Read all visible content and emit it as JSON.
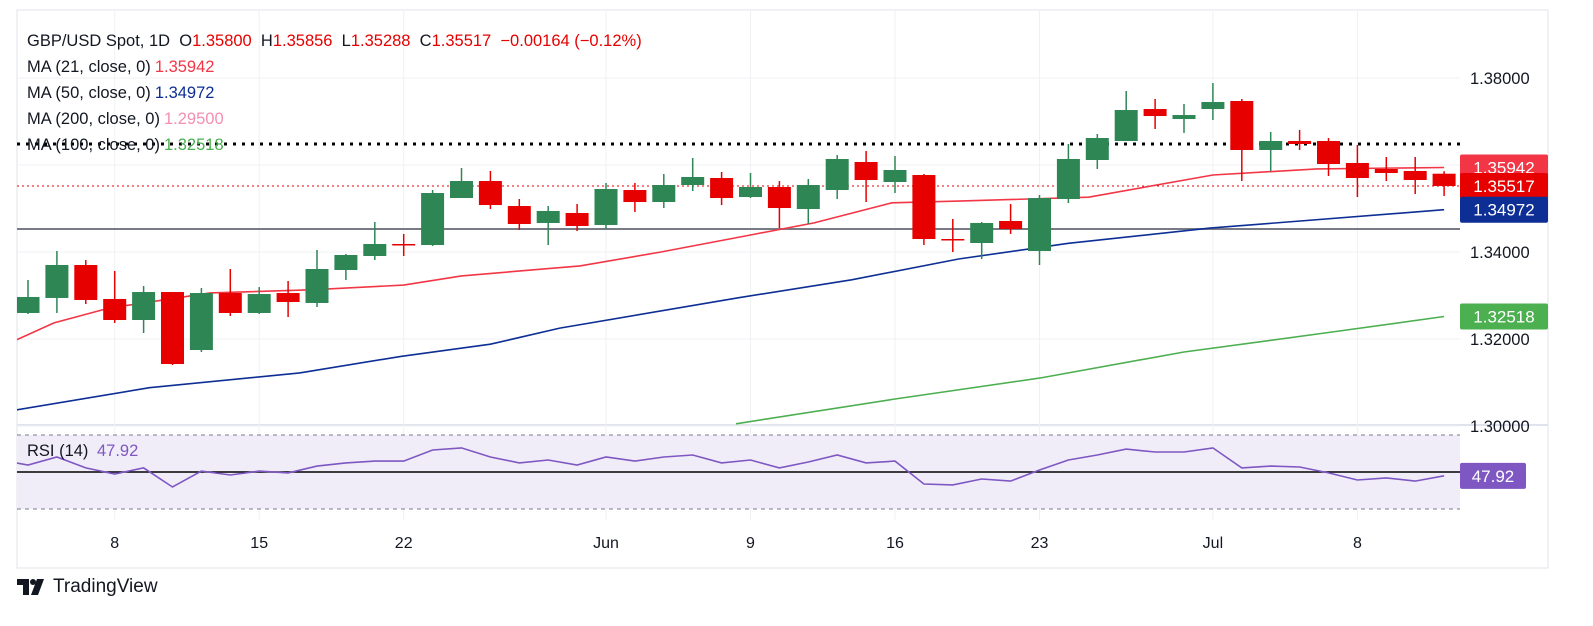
{
  "chart_data": {
    "type": "candlestick",
    "title": "GBP/USD Spot, 1D",
    "ohlc_header": {
      "open": "1.35800",
      "high": "1.35856",
      "low": "1.35288",
      "close": "1.35517",
      "change": "−0.00164 (−0.12%)",
      "o": "O",
      "h": "H",
      "l": "L",
      "c": "C"
    },
    "indicators": [
      {
        "name": "MA (21, close, 0)",
        "value": "1.35942",
        "color": "#f23645"
      },
      {
        "name": "MA (50, close, 0)",
        "value": "1.34972",
        "color": "#0d2e94"
      },
      {
        "name": "MA (200, close, 0)",
        "value": "1.29500",
        "color": "#f48fb1"
      },
      {
        "name": "MA (100, close, 0)",
        "value": "1.32518",
        "color": "#4caf50"
      }
    ],
    "candles_ohlc": [
      [
        1.32598,
        1.33356,
        1.32575,
        1.32966
      ],
      [
        1.32943,
        1.34023,
        1.32598,
        1.33701
      ],
      [
        1.33701,
        1.33816,
        1.32805,
        1.32897
      ],
      [
        1.3292,
        1.33563,
        1.32368,
        1.32437
      ],
      [
        1.32437,
        1.33218,
        1.32138,
        1.3308
      ],
      [
        1.3308,
        1.3308,
        1.31402,
        1.31425
      ],
      [
        1.31747,
        1.33172,
        1.31701,
        1.33057
      ],
      [
        1.33057,
        1.33609,
        1.32529,
        1.32598
      ],
      [
        1.32598,
        1.33195,
        1.32575,
        1.33034
      ],
      [
        1.33057,
        1.33333,
        1.32506,
        1.32851
      ],
      [
        1.32828,
        1.34046,
        1.32736,
        1.33609
      ],
      [
        1.33586,
        1.33954,
        1.33356,
        1.33931
      ],
      [
        1.33908,
        1.3469,
        1.33816,
        1.34184
      ],
      [
        1.34184,
        1.34414,
        1.33908,
        1.34161
      ],
      [
        1.34161,
        1.35425,
        1.34138,
        1.35356
      ],
      [
        1.35241,
        1.35931,
        1.35241,
        1.35632
      ],
      [
        1.35632,
        1.35862,
        1.34988,
        1.3508
      ],
      [
        1.35057,
        1.35218,
        1.34506,
        1.34644
      ],
      [
        1.34667,
        1.35057,
        1.34161,
        1.34943
      ],
      [
        1.34897,
        1.35103,
        1.34483,
        1.34598
      ],
      [
        1.34621,
        1.35586,
        1.34529,
        1.35448
      ],
      [
        1.35425,
        1.35586,
        1.3492,
        1.35149
      ],
      [
        1.35149,
        1.35793,
        1.35011,
        1.3554
      ],
      [
        1.3554,
        1.36161,
        1.35402,
        1.35724
      ],
      [
        1.35701,
        1.35839,
        1.3508,
        1.35241
      ],
      [
        1.35264,
        1.35816,
        1.35241,
        1.35494
      ],
      [
        1.35494,
        1.35632,
        1.34552,
        1.35011
      ],
      [
        1.34988,
        1.35678,
        1.34644,
        1.3554
      ],
      [
        1.35425,
        1.3623,
        1.35218,
        1.36138
      ],
      [
        1.36069,
        1.36322,
        1.35149,
        1.35655
      ],
      [
        1.35609,
        1.36207,
        1.35356,
        1.35885
      ],
      [
        1.3577,
        1.35793,
        1.34161,
        1.34299
      ],
      [
        1.34299,
        1.34759,
        1.34,
        1.34276
      ],
      [
        1.34207,
        1.3469,
        1.33839,
        1.34667
      ],
      [
        1.34713,
        1.35103,
        1.34414,
        1.34529
      ],
      [
        1.34023,
        1.3531,
        1.33701,
        1.35241
      ],
      [
        1.35218,
        1.36483,
        1.35126,
        1.36138
      ],
      [
        1.36115,
        1.36713,
        1.35908,
        1.36621
      ],
      [
        1.36552,
        1.37701,
        1.36552,
        1.37264
      ],
      [
        1.37287,
        1.37517,
        1.36828,
        1.37126
      ],
      [
        1.37057,
        1.37402,
        1.36736,
        1.37149
      ],
      [
        1.37287,
        1.37885,
        1.37034,
        1.37448
      ],
      [
        1.37471,
        1.37517,
        1.35632,
        1.36345
      ],
      [
        1.36345,
        1.36759,
        1.35862,
        1.36552
      ],
      [
        1.36552,
        1.36805,
        1.36345,
        1.36483
      ],
      [
        1.36552,
        1.36621,
        1.35747,
        1.36023
      ],
      [
        1.36046,
        1.3646,
        1.35264,
        1.35701
      ],
      [
        1.35908,
        1.36184,
        1.35632,
        1.35816
      ],
      [
        1.35862,
        1.36184,
        1.35333,
        1.35655
      ],
      [
        1.358,
        1.35856,
        1.35288,
        1.35517
      ]
    ],
    "ma21_points": [
      [
        -0.4,
        1.3198
      ],
      [
        0.9,
        1.3237
      ],
      [
        2.8,
        1.3271
      ],
      [
        6.3,
        1.3306
      ],
      [
        9.8,
        1.3313
      ],
      [
        13,
        1.3324
      ],
      [
        15,
        1.3345
      ],
      [
        19.1,
        1.3368
      ],
      [
        21.9,
        1.34
      ],
      [
        25,
        1.3439
      ],
      [
        27.2,
        1.3467
      ],
      [
        29.9,
        1.3513
      ],
      [
        32.2,
        1.3517
      ],
      [
        36.7,
        1.3526
      ],
      [
        41,
        1.3577
      ],
      [
        44.6,
        1.3591
      ],
      [
        49,
        1.35942
      ]
    ],
    "ma50_points": [
      [
        -0.4,
        1.3037
      ],
      [
        4.2,
        1.3088
      ],
      [
        9.4,
        1.3122
      ],
      [
        12.9,
        1.316
      ],
      [
        16,
        1.3188
      ],
      [
        18.4,
        1.3225
      ],
      [
        24.6,
        1.3295
      ],
      [
        28.5,
        1.3336
      ],
      [
        32.2,
        1.3384
      ],
      [
        36,
        1.342
      ],
      [
        40.9,
        1.3455
      ],
      [
        49,
        1.34972
      ]
    ],
    "ma100_points": [
      [
        24.5,
        1.3005
      ],
      [
        30,
        1.3062
      ],
      [
        35,
        1.311
      ],
      [
        40,
        1.317
      ],
      [
        45,
        1.3215
      ],
      [
        49,
        1.32518
      ]
    ],
    "hlines": {
      "resistance_dotted": 1.36483,
      "support_solid": 1.34529
    },
    "y_ticks": [
      "1.38000",
      "1.34000",
      "1.32000",
      "1.30000"
    ],
    "y_tick_values": [
      1.38,
      1.34,
      1.32,
      1.3
    ],
    "ylim": [
      1.2985,
      1.3927
    ],
    "price_badges": [
      {
        "value": "1.35942",
        "color": "#f23645"
      },
      {
        "value": "1.35517",
        "color": "#e60000"
      },
      {
        "value": "1.34972",
        "color": "#0d2e94"
      },
      {
        "value": "1.32518",
        "color": "#4caf50"
      }
    ],
    "x_ticks": [
      {
        "index": 3,
        "label": "8"
      },
      {
        "index": 8,
        "label": "15"
      },
      {
        "index": 13,
        "label": "22"
      },
      {
        "index": 20,
        "label": "Jun"
      },
      {
        "index": 25,
        "label": "9"
      },
      {
        "index": 30,
        "label": "16"
      },
      {
        "index": 35,
        "label": "23"
      },
      {
        "index": 41,
        "label": "Jul"
      },
      {
        "index": 46,
        "label": "8"
      }
    ],
    "rsi": {
      "label": "RSI (14)",
      "value": "47.92",
      "color": "#7e57c2",
      "levels": [
        70,
        50,
        30
      ],
      "values": [
        53.8,
        58.1,
        52.2,
        48.9,
        52.2,
        41.9,
        50.5,
        48.4,
        50.5,
        49.5,
        53.2,
        54.9,
        55.9,
        55.9,
        61.9,
        63.0,
        58.1,
        54.9,
        56.5,
        53.8,
        58.1,
        55.9,
        58.1,
        59.2,
        54.9,
        56.5,
        52.2,
        55.4,
        59.2,
        54.9,
        55.9,
        43.5,
        43.0,
        46.2,
        45.1,
        51.1,
        56.5,
        59.2,
        62.4,
        60.8,
        60.8,
        63.0,
        52.2,
        53.2,
        52.7,
        49.5,
        45.7,
        46.8,
        45.1,
        47.92
      ]
    },
    "colors": {
      "up": "#2e8655",
      "down": "#e60000"
    }
  },
  "branding": {
    "logo_text": "TradingView"
  }
}
